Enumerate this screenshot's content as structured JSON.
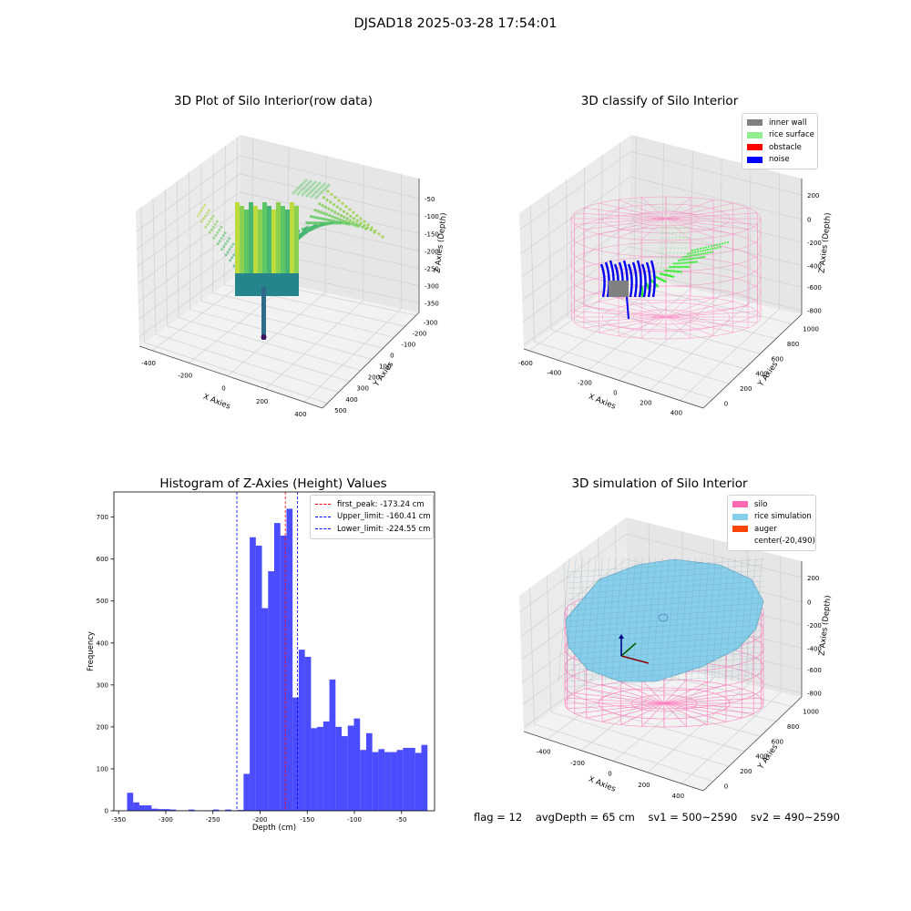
{
  "suptitle": "DJSAD18 2025-03-28 17:54:01",
  "chart_data": [
    {
      "type": "scatter",
      "title": "3D Plot of Silo Interior(row data)",
      "xlabel": "X Axies",
      "ylabel": "Y Axies",
      "zlabel": "Z Axies (Depth)",
      "x_ticks": [
        -400,
        -200,
        0,
        200,
        400
      ],
      "y_ticks": [
        -300,
        -200,
        -100,
        0,
        100,
        200,
        300,
        400,
        500
      ],
      "z_ticks": [
        -50,
        -100,
        -150,
        -200,
        -250,
        -300,
        -350
      ],
      "colormap": "viridis",
      "grid": true
    },
    {
      "type": "scatter",
      "title": "3D classify of Silo Interior",
      "xlabel": "X Axies",
      "ylabel": "Y Axies",
      "zlabel": "Z Axies (Depth)",
      "x_ticks": [
        -600,
        -400,
        -200,
        0,
        200,
        400
      ],
      "y_ticks": [
        0,
        200,
        400,
        600,
        800,
        1000
      ],
      "z_ticks": [
        200,
        0,
        -200,
        -400,
        -600,
        -800
      ],
      "legend": [
        {
          "label": "inner wall",
          "color": "#808080"
        },
        {
          "label": "rice surface",
          "color": "#90ee90"
        },
        {
          "label": "obstacle",
          "color": "#ff0000"
        },
        {
          "label": "noise",
          "color": "#0000ff"
        }
      ],
      "legend_position": "top-right",
      "grid": true
    },
    {
      "type": "bar",
      "title": "Histogram of Z-Axies (Height) Values",
      "xlabel": "Depth (cm)",
      "ylabel": "Frequency",
      "xlim": [
        -355,
        -15
      ],
      "ylim": [
        0,
        760
      ],
      "x_ticks": [
        -350,
        -300,
        -250,
        -200,
        -150,
        -100,
        -50
      ],
      "y_ticks": [
        0,
        100,
        200,
        300,
        400,
        500,
        600,
        700
      ],
      "bar_color": "#0000ff",
      "bin_edges": [
        -341,
        -334.5,
        -328,
        -321.5,
        -315,
        -308.5,
        -302,
        -295.5,
        -289,
        -282.5,
        -276,
        -269.5,
        -263,
        -256.5,
        -250,
        -243.5,
        -237,
        -230.5,
        -224,
        -217.5,
        -211,
        -204.5,
        -198,
        -191.5,
        -185,
        -178.5,
        -172,
        -165.5,
        -159,
        -152.5,
        -146,
        -139.5,
        -133,
        -126.5,
        -120,
        -113.5,
        -107,
        -100.5,
        -94,
        -87.5,
        -81,
        -74.5,
        -68,
        -61.5,
        -55,
        -48.5,
        -42,
        -35.5,
        -29,
        -22.5
      ],
      "values": [
        43,
        20,
        13,
        13,
        5,
        4,
        4,
        3,
        1,
        1,
        3,
        1,
        1,
        1,
        3,
        1,
        3,
        1,
        2,
        88,
        652,
        632,
        483,
        571,
        686,
        656,
        720,
        270,
        384,
        367,
        197,
        200,
        213,
        313,
        200,
        178,
        203,
        220,
        145,
        185,
        140,
        147,
        140,
        140,
        145,
        150,
        150,
        138,
        157,
        153
      ],
      "vlines": [
        {
          "label": "first_peak: -173.24 cm",
          "value": -173.24,
          "color": "#ff0000"
        },
        {
          "label": "Upper_limit: -160.41 cm",
          "value": -160.41,
          "color": "#0000ff"
        },
        {
          "label": "Lower_limit: -224.55 cm",
          "value": -224.55,
          "color": "#0000ff"
        }
      ],
      "legend_position": "top-right"
    },
    {
      "type": "surface",
      "title": "3D simulation of Silo Interior",
      "xlabel": "X Axies",
      "ylabel": "Y Axies",
      "zlabel": "Z Axies (Depth)",
      "x_ticks": [
        -400,
        -200,
        0,
        200,
        400
      ],
      "y_ticks": [
        0,
        200,
        400,
        600,
        800,
        1000
      ],
      "z_ticks": [
        200,
        0,
        -200,
        -400,
        -600,
        -800
      ],
      "legend": [
        {
          "label": "silo",
          "color": "#ff69b4"
        },
        {
          "label": "rice simulation",
          "color": "#87ceeb"
        },
        {
          "label": "auger",
          "color": "#ff4500"
        },
        {
          "label": "center(-20,490)",
          "color": ""
        }
      ],
      "legend_position": "top-right",
      "grid": true
    }
  ],
  "status": {
    "flag": "flag = 12",
    "avg_depth": "avgDepth = 65 cm",
    "sv1": "sv1 = 500~2590",
    "sv2": "sv2 = 490~2590"
  }
}
